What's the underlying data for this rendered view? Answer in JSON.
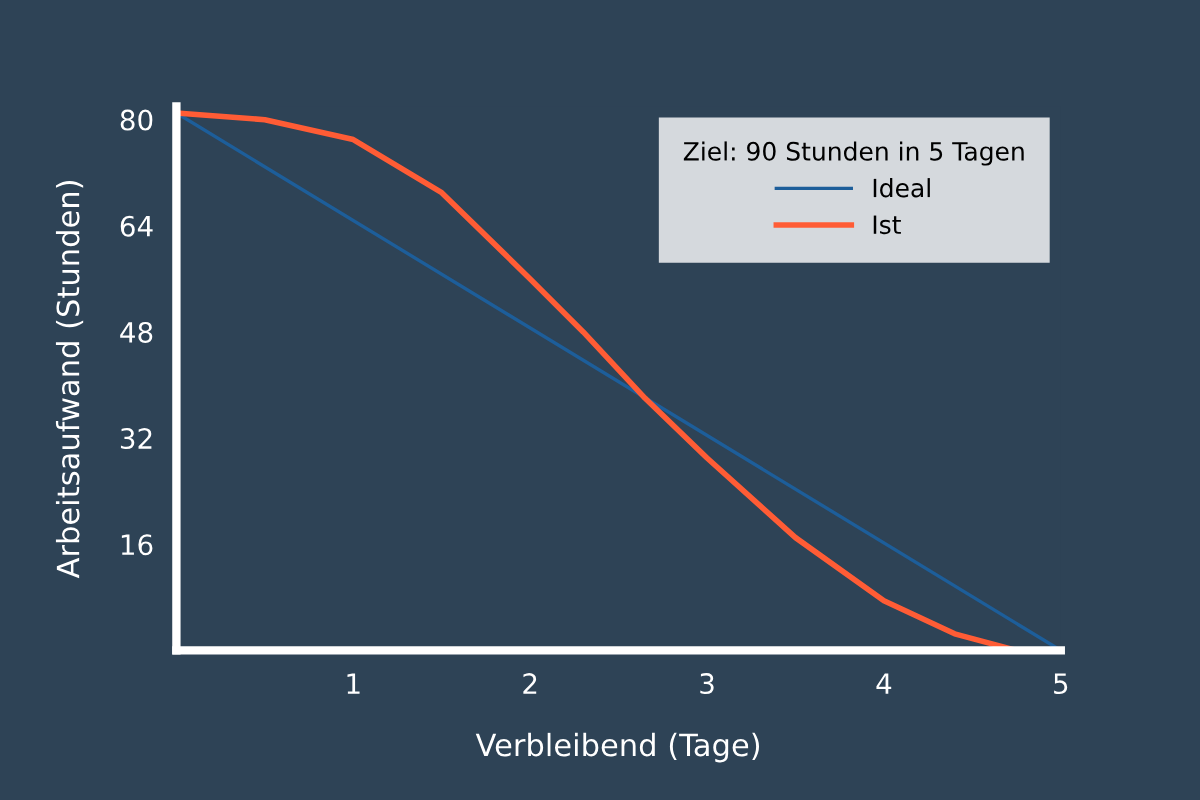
{
  "chart_data": {
    "type": "line",
    "xlabel": "Verbleibend (Tage)",
    "ylabel": "Arbeitsaufwand (Stunden)",
    "legend_title": "Ziel: 90 Stunden in 5 Tagen",
    "series": [
      {
        "name": "Ideal",
        "color": "#1d5e9a",
        "x": [
          0,
          5
        ],
        "values": [
          81,
          0
        ]
      },
      {
        "name": "Ist",
        "color": "#ff5c35",
        "x": [
          0,
          0.5,
          1,
          1.5,
          2,
          2.3,
          2.65,
          3,
          3.5,
          4,
          4.4,
          4.75
        ],
        "values": [
          81,
          80,
          77,
          69,
          56,
          48,
          38,
          29,
          17,
          7.5,
          2.5,
          0
        ]
      }
    ],
    "xlim": [
      0,
      5
    ],
    "xticks": [
      1,
      2,
      3,
      4,
      5
    ],
    "ylim": [
      0,
      82
    ],
    "yticks": [
      16,
      32,
      48,
      64,
      80
    ],
    "grid": false,
    "legend": "top right",
    "marker": "none",
    "line_style": "solid"
  }
}
